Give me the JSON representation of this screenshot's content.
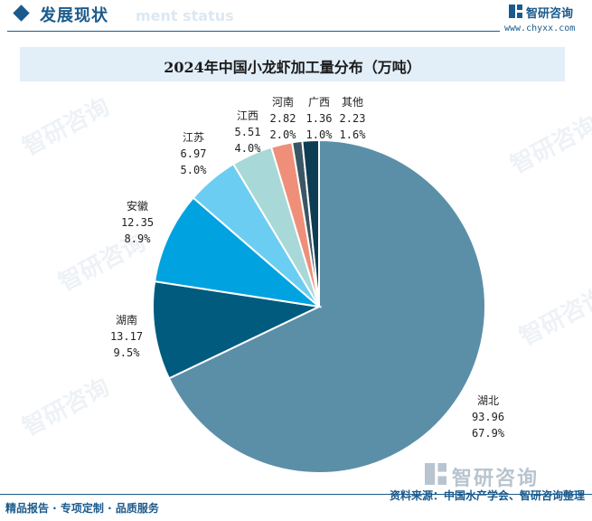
{
  "header": {
    "section_title": "发展现状",
    "section_ghost": "ment status",
    "brand_name": "智研咨询",
    "brand_url": "www.chyxx.com"
  },
  "chart_data": {
    "type": "pie",
    "title": "2024年中国小龙虾加工量分布（万吨）",
    "unit": "万吨",
    "start": "12 o'clock, clockwise",
    "slices": [
      {
        "label": "湖北",
        "value": "93.96",
        "percent": "67.9%",
        "color": "#5b8fa8"
      },
      {
        "label": "湖南",
        "value": "13.17",
        "percent": "9.5%",
        "color": "#015b7e"
      },
      {
        "label": "安徽",
        "value": "12.35",
        "percent": "8.9%",
        "color": "#00a3e0"
      },
      {
        "label": "江苏",
        "value": "6.97",
        "percent": "5.0%",
        "color": "#6ccdf2"
      },
      {
        "label": "江西",
        "value": "5.51",
        "percent": "4.0%",
        "color": "#a8d8d8"
      },
      {
        "label": "河南",
        "value": "2.82",
        "percent": "2.0%",
        "color": "#ef8f7a"
      },
      {
        "label": "广西",
        "value": "1.36",
        "percent": "1.0%",
        "color": "#3a5664"
      },
      {
        "label": "其他",
        "value": "2.23",
        "percent": "1.6%",
        "color": "#0d3d52"
      }
    ]
  },
  "watermark": {
    "text": "智研咨询"
  },
  "footer": {
    "left": "精品报告 · 专项定制 · 品质服务",
    "right": "资料来源：中国水产学会、智研咨询整理",
    "logo_text": "智研咨询"
  }
}
